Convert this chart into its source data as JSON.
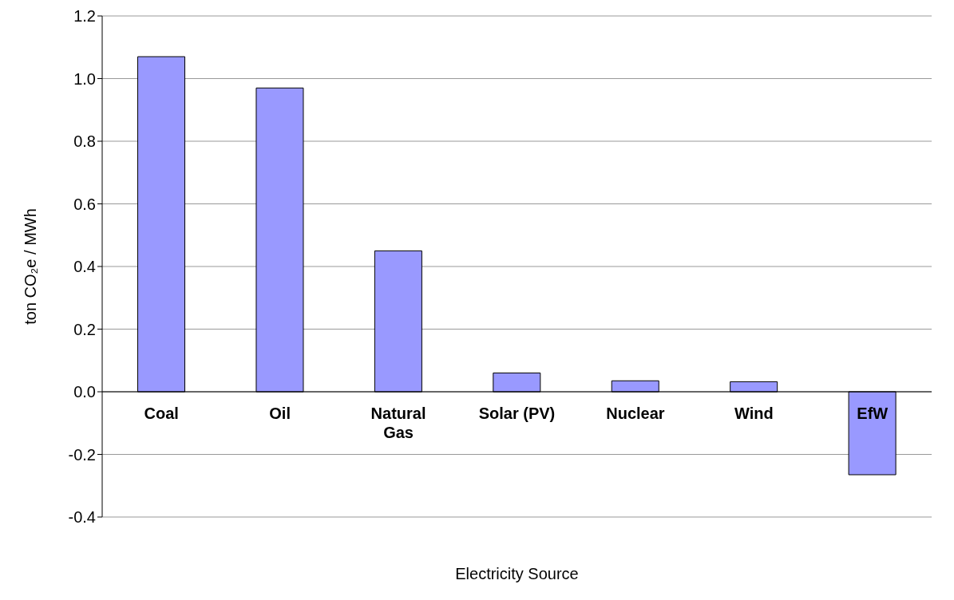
{
  "chart_data": {
    "type": "bar",
    "xlabel": "Electricity Source",
    "ylabel": "ton CO₂e / MWh",
    "categories": [
      "Coal",
      "Oil",
      "Natural Gas",
      "Solar (PV)",
      "Nuclear",
      "Wind",
      "EfW"
    ],
    "values": [
      1.07,
      0.97,
      0.45,
      0.06,
      0.035,
      0.032,
      -0.265
    ],
    "color": "#9999ff",
    "ylim": [
      -0.4,
      1.2
    ],
    "yticks": [
      {
        "value": -0.4,
        "label": "-0.4"
      },
      {
        "value": -0.2,
        "label": "-0.2"
      },
      {
        "value": 0,
        "label": "0.0"
      },
      {
        "value": 0.2,
        "label": "0.2"
      },
      {
        "value": 0.4,
        "label": "0.4"
      },
      {
        "value": 0.6,
        "label": "0.6"
      },
      {
        "value": 0.8,
        "label": "0.8"
      },
      {
        "value": 1.0,
        "label": "1.0"
      },
      {
        "value": 1.2,
        "label": "1.2"
      }
    ],
    "grid": "y"
  }
}
